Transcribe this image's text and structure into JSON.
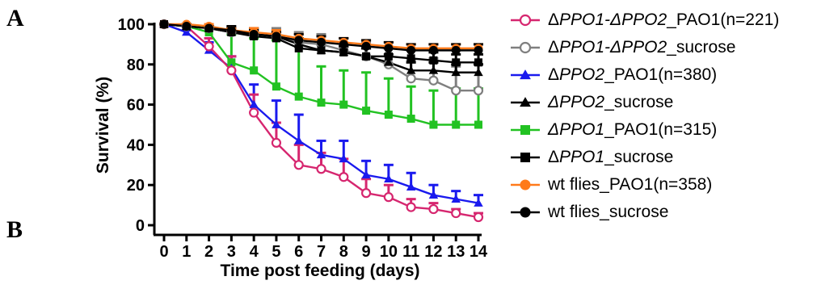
{
  "panel_labels": [
    "A",
    "B"
  ],
  "chart_data": {
    "type": "line",
    "title": "",
    "xlabel": "Time post feeding (days)",
    "ylabel": "Survival (%)",
    "xlim": [
      0,
      14
    ],
    "ylim": [
      0,
      100
    ],
    "xticks": [
      0,
      1,
      2,
      3,
      4,
      5,
      6,
      7,
      8,
      9,
      10,
      11,
      12,
      13,
      14
    ],
    "yticks": [
      0,
      20,
      40,
      60,
      80,
      100
    ],
    "grid": false,
    "legend_position": "right",
    "x": [
      0,
      1,
      2,
      3,
      4,
      5,
      6,
      7,
      8,
      9,
      10,
      11,
      12,
      13,
      14
    ],
    "series": [
      {
        "name": "ΔPPO1-ΔPPO2_PAO1(n=221)",
        "name_parts": [
          {
            "t": "Δ",
            "i": false
          },
          {
            "t": "PPO1-ΔPPO2",
            "i": true
          },
          {
            "t": "_PAO1(n=221)",
            "i": false
          }
        ],
        "color": "#d6266f",
        "marker": "circle-open",
        "values": [
          100,
          99,
          89,
          77,
          56,
          41,
          30,
          28,
          24,
          16,
          14,
          9,
          8,
          6,
          4
        ],
        "errors": [
          0,
          1,
          4,
          7,
          9,
          10,
          10,
          8,
          9,
          7,
          6,
          4,
          3,
          2,
          2
        ]
      },
      {
        "name": "ΔPPO1-ΔPPO2_sucrose",
        "name_parts": [
          {
            "t": "Δ",
            "i": false
          },
          {
            "t": "PPO1-ΔPPO2",
            "i": true
          },
          {
            "t": "_sucrose",
            "i": false
          }
        ],
        "color": "#7f7f7f",
        "marker": "circle-open",
        "values": [
          100,
          99,
          98,
          96,
          95,
          94,
          91,
          90,
          87,
          84,
          80,
          73,
          72,
          67,
          67
        ],
        "errors": [
          0,
          1,
          1,
          2,
          3,
          4,
          5,
          5,
          6,
          7,
          8,
          9,
          11,
          12,
          13
        ]
      },
      {
        "name": "ΔPPO2_PAO1(n=380)",
        "name_parts": [
          {
            "t": "Δ",
            "i": false
          },
          {
            "t": "PPO2",
            "i": true
          },
          {
            "t": "_PAO1(n=380)",
            "i": false
          }
        ],
        "color": "#1a1aee",
        "marker": "triangle",
        "values": [
          100,
          96,
          87,
          78,
          60,
          50,
          42,
          35,
          33,
          25,
          23,
          19,
          15,
          13,
          11
        ],
        "errors": [
          0,
          1,
          4,
          6,
          10,
          12,
          13,
          7,
          9,
          7,
          7,
          7,
          5,
          4,
          4
        ]
      },
      {
        "name": "ΔPPO2_sucrose",
        "name_parts": [
          {
            "t": "ΔPPO2",
            "i": true
          },
          {
            "t": "_sucrose",
            "i": false
          }
        ],
        "color": "#000000",
        "marker": "triangle",
        "values": [
          100,
          99,
          98,
          96,
          95,
          94,
          90,
          87,
          86,
          84,
          81,
          77,
          77,
          76,
          76
        ],
        "errors": [
          0,
          1,
          1,
          2,
          3,
          3,
          3,
          3,
          3,
          4,
          4,
          4,
          4,
          4,
          4
        ]
      },
      {
        "name": "ΔPPO1_PAO1(n=315)",
        "name_parts": [
          {
            "t": "ΔPPO1",
            "i": true
          },
          {
            "t": "_PAO1(n=315)",
            "i": false
          }
        ],
        "color": "#22c222",
        "marker": "square",
        "values": [
          100,
          99,
          96,
          81,
          77,
          69,
          64,
          61,
          60,
          57,
          55,
          53,
          50,
          50,
          50
        ],
        "errors": [
          0,
          1,
          2,
          14,
          16,
          23,
          28,
          18,
          17,
          19,
          18,
          16,
          17,
          18,
          18
        ]
      },
      {
        "name": "ΔPPO1_sucrose",
        "name_parts": [
          {
            "t": "Δ",
            "i": false
          },
          {
            "t": "PPO1",
            "i": true
          },
          {
            "t": "_sucrose",
            "i": false
          }
        ],
        "color": "#000000",
        "marker": "square",
        "values": [
          100,
          99,
          98,
          96,
          94,
          93,
          88,
          87,
          86,
          84,
          84,
          83,
          82,
          81,
          81
        ],
        "errors": [
          0,
          1,
          1,
          2,
          3,
          3,
          3,
          3,
          3,
          4,
          4,
          4,
          4,
          4,
          4
        ]
      },
      {
        "name": "wt flies_PAO1(n=358)",
        "name_parts": [
          {
            "t": "wt flies_PAO1(n=358)",
            "i": false
          }
        ],
        "color": "#ff7a1a",
        "marker": "circle",
        "values": [
          100,
          100,
          99,
          97,
          96,
          95,
          93,
          92,
          91,
          90,
          89,
          88,
          88,
          88,
          88
        ],
        "errors": [
          0,
          1,
          1,
          1,
          2,
          2,
          2,
          2,
          2,
          2,
          2,
          2,
          2,
          2,
          2
        ]
      },
      {
        "name": "wt flies_sucrose",
        "name_parts": [
          {
            "t": "wt flies_sucrose",
            "i": false
          }
        ],
        "color": "#000000",
        "marker": "circle",
        "values": [
          100,
          99,
          98,
          97,
          95,
          94,
          92,
          91,
          90,
          89,
          88,
          87,
          87,
          87,
          87
        ],
        "errors": [
          0,
          1,
          1,
          2,
          2,
          2,
          3,
          3,
          3,
          3,
          3,
          3,
          3,
          3,
          3
        ]
      }
    ]
  }
}
